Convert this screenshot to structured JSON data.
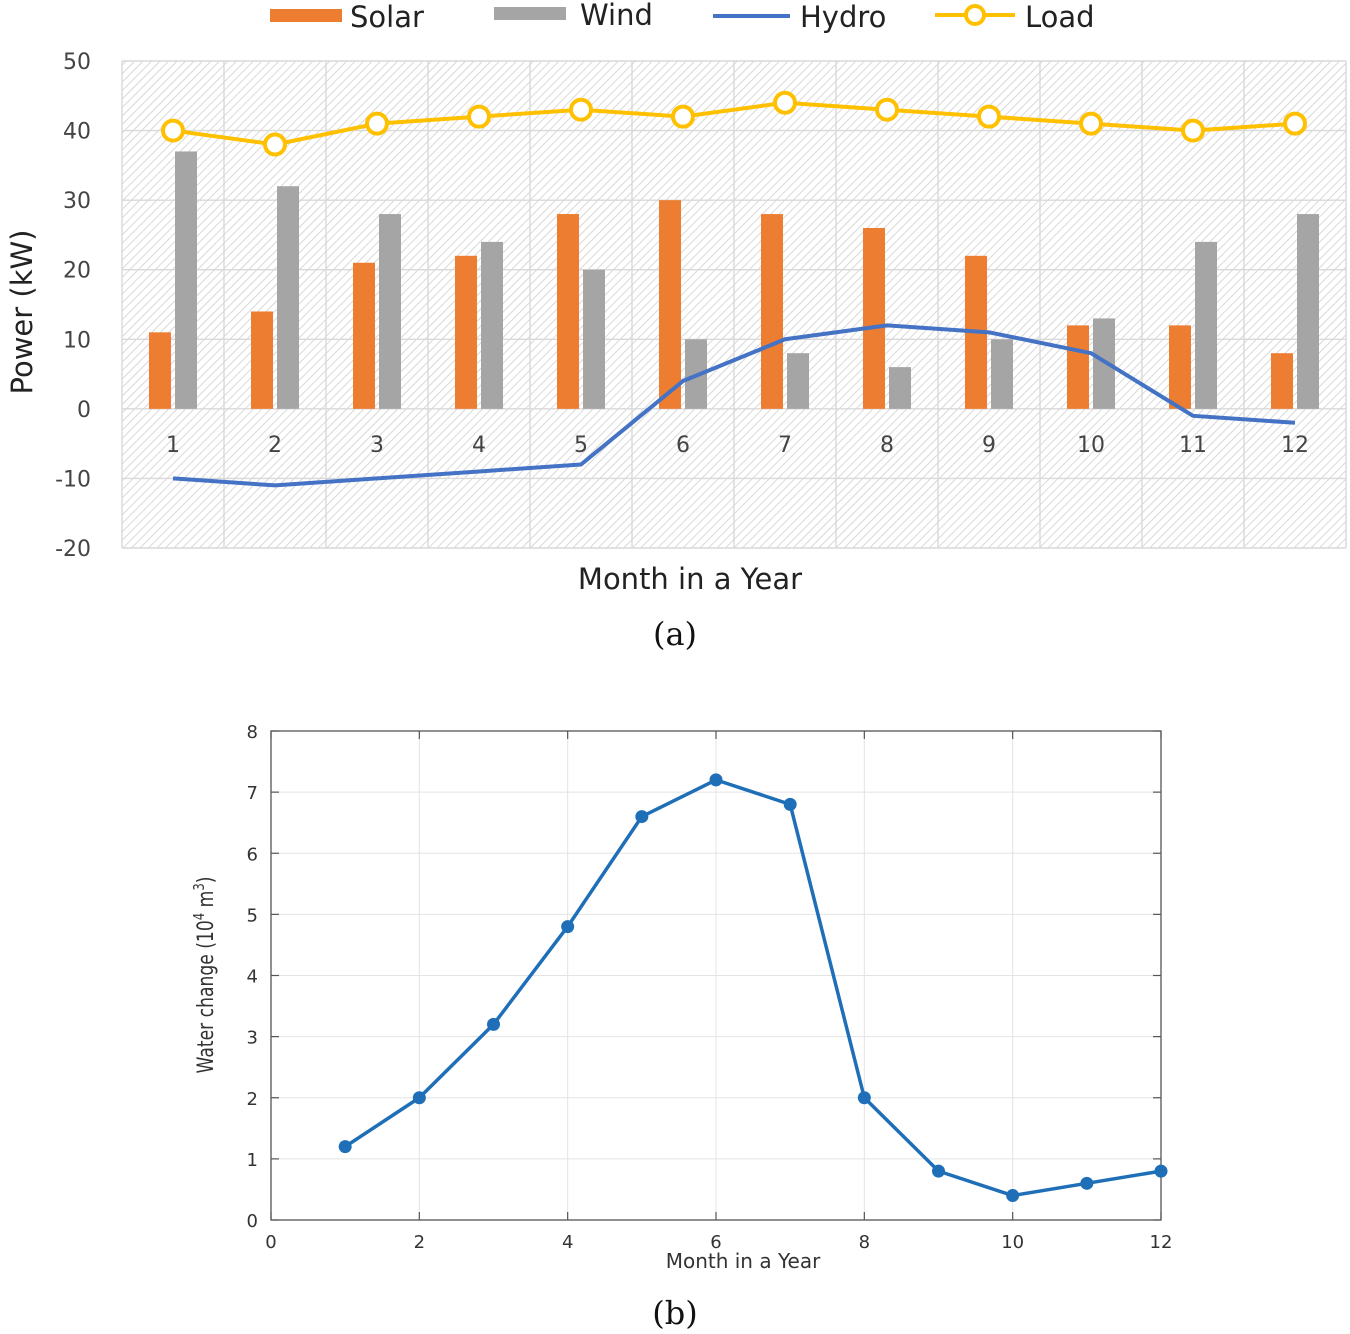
{
  "chart_data": [
    {
      "panel": "(a)",
      "type": "bar",
      "title": "",
      "xlabel": "Month in a Year",
      "ylabel": "Power (kW)",
      "ylim": [
        -20,
        50
      ],
      "yticks": [
        -20,
        -10,
        0,
        10,
        20,
        30,
        40,
        50
      ],
      "categories": [
        "1",
        "2",
        "3",
        "4",
        "5",
        "6",
        "7",
        "8",
        "9",
        "10",
        "11",
        "12"
      ],
      "grid": true,
      "legend_position": "top",
      "legend": [
        {
          "name": "Solar",
          "kind": "bar"
        },
        {
          "name": "Wind",
          "kind": "bar"
        },
        {
          "name": "Hydro",
          "kind": "line"
        },
        {
          "name": "Load",
          "kind": "line-marker"
        }
      ],
      "series": [
        {
          "name": "Solar",
          "kind": "bar",
          "color": "#ED7D31",
          "values": [
            11,
            14,
            21,
            22,
            28,
            30,
            28,
            26,
            22,
            12,
            12,
            8
          ]
        },
        {
          "name": "Wind",
          "kind": "bar",
          "color": "#A5A5A5",
          "values": [
            37,
            32,
            28,
            24,
            20,
            10,
            8,
            6,
            10,
            13,
            24,
            28
          ]
        },
        {
          "name": "Hydro",
          "kind": "line",
          "color": "#4472C4",
          "values": [
            -10,
            -11,
            -10,
            -9,
            -8,
            4,
            10,
            12,
            11,
            8,
            -1,
            -2
          ]
        },
        {
          "name": "Load",
          "kind": "line-marker",
          "color": "#FFC000",
          "values": [
            40,
            38,
            41,
            42,
            43,
            42,
            44,
            43,
            42,
            41,
            40,
            41
          ]
        }
      ]
    },
    {
      "panel": "(b)",
      "type": "line",
      "title": "",
      "xlabel": "Month in a Year",
      "ylabel": "Water change (10",
      "ylabel_exp1": "4",
      "ylabel_mid": " m",
      "ylabel_exp2": "3",
      "ylabel_end": ")",
      "xlim": [
        0,
        12
      ],
      "ylim": [
        0,
        8
      ],
      "xticks": [
        0,
        2,
        4,
        6,
        8,
        10,
        12
      ],
      "yticks": [
        0,
        1,
        2,
        3,
        4,
        5,
        6,
        7,
        8
      ],
      "grid": true,
      "series": [
        {
          "name": "Water change",
          "color": "#1F6FB8",
          "x": [
            1,
            2,
            3,
            4,
            5,
            6,
            7,
            8,
            9,
            10,
            11,
            12
          ],
          "y": [
            1.2,
            2.0,
            3.2,
            4.8,
            6.6,
            7.2,
            6.8,
            2.0,
            0.8,
            0.4,
            0.6,
            0.8
          ]
        }
      ]
    }
  ],
  "captions": {
    "a": "(a)",
    "b": "(b)"
  }
}
